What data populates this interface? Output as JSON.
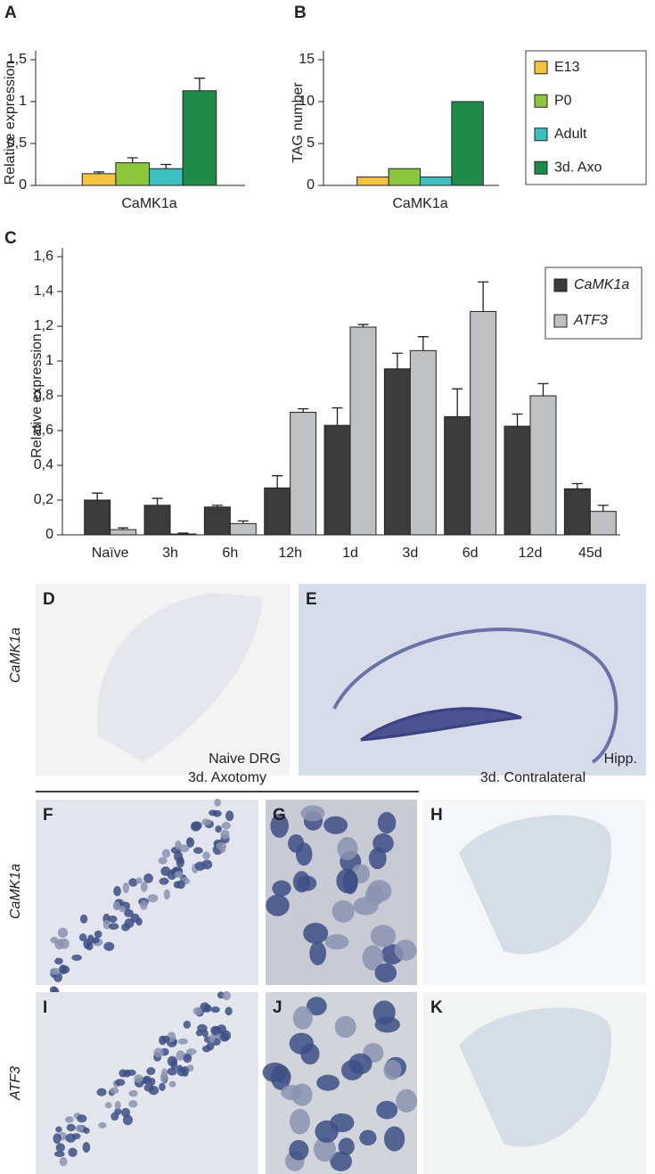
{
  "chart_data": [
    {
      "type": "bar",
      "panel": "A",
      "ylabel": "Relative expression",
      "categories": [
        "CaMK1a"
      ],
      "ylim": [
        0,
        1.5
      ],
      "yticks": [
        0,
        {
          "value": 0.5,
          "label": "0,5"
        },
        1,
        {
          "value": 1.5,
          "label": "1,5"
        }
      ],
      "legend": "right",
      "series": [
        {
          "name": "E13",
          "color": "#f7c23e",
          "values": [
            0.14
          ],
          "errors": [
            0.02
          ]
        },
        {
          "name": "P0",
          "color": "#8cc63f",
          "values": [
            0.27
          ],
          "errors": [
            0.06
          ]
        },
        {
          "name": "Adult",
          "color": "#3dbfc0",
          "values": [
            0.2
          ],
          "errors": [
            0.05
          ]
        },
        {
          "name": "3d. Axo",
          "color": "#1e8c48",
          "values": [
            1.13
          ],
          "errors": [
            0.15
          ]
        }
      ]
    },
    {
      "type": "bar",
      "panel": "B",
      "ylabel": "TAG number",
      "categories": [
        "CaMK1a"
      ],
      "ylim": [
        0,
        15
      ],
      "yticks": [
        0,
        5,
        10,
        15
      ],
      "series": [
        {
          "color": "#f7c23e",
          "values": [
            1
          ]
        },
        {
          "color": "#8cc63f",
          "values": [
            2
          ]
        },
        {
          "color": "#3dbfc0",
          "values": [
            1
          ]
        },
        {
          "color": "#1e8c48",
          "values": [
            10
          ]
        }
      ]
    },
    {
      "type": "bar",
      "panel": "C",
      "ylabel": "Relative expression",
      "categories": [
        "Naïve",
        "3h",
        "6h",
        "12h",
        "1d",
        "3d",
        "6d",
        "12d",
        "45d"
      ],
      "ylim": [
        0,
        1.6
      ],
      "yticks": [
        0,
        {
          "value": 0.2,
          "label": "0,2"
        },
        {
          "value": 0.4,
          "label": "0,4"
        },
        {
          "value": 0.6,
          "label": "0,6"
        },
        {
          "value": 0.8,
          "label": "0,8"
        },
        1,
        {
          "value": 1.2,
          "label": "1,2"
        },
        {
          "value": 1.4,
          "label": "1,4"
        },
        {
          "value": 1.6,
          "label": "1,6"
        }
      ],
      "legend": "upper right",
      "series": [
        {
          "name": "CaMK1a",
          "color": "#3b3b3b",
          "values": [
            0.2,
            0.17,
            0.16,
            0.27,
            0.63,
            0.955,
            0.68,
            0.625,
            0.265
          ],
          "errors": [
            0.04,
            0.04,
            0.01,
            0.07,
            0.1,
            0.09,
            0.16,
            0.07,
            0.03
          ]
        },
        {
          "name": "ATF3",
          "color": "#bfc0c2",
          "values": [
            0.03,
            0.005,
            0.065,
            0.705,
            1.195,
            1.06,
            1.285,
            0.8,
            0.135
          ],
          "errors": [
            0.01,
            0.005,
            0.015,
            0.02,
            0.015,
            0.08,
            0.17,
            0.07,
            0.035
          ]
        }
      ]
    }
  ],
  "images": {
    "row_labels": [
      "CaMK1a",
      "CaMK1a",
      "ATF3"
    ],
    "column_headers": [
      "3d. Axotomy",
      "3d. Contralateral"
    ],
    "panels": [
      {
        "letter": "D",
        "caption": "Naive DRG"
      },
      {
        "letter": "E",
        "caption": "Hipp."
      },
      {
        "letter": "F"
      },
      {
        "letter": "G"
      },
      {
        "letter": "H"
      },
      {
        "letter": "I"
      },
      {
        "letter": "J"
      },
      {
        "letter": "K"
      }
    ]
  }
}
